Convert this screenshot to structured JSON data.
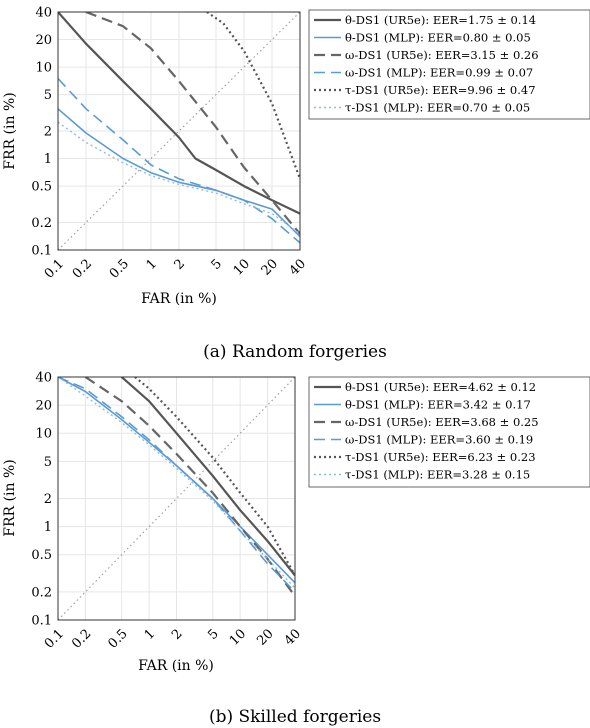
{
  "figure": {
    "panels": [
      {
        "caption": "(a) Random forgeries"
      },
      {
        "caption": "(b) Skilled forgeries"
      }
    ]
  },
  "chart_data": [
    {
      "type": "line",
      "title": "",
      "xlabel": "FAR (in %)",
      "ylabel": "FRR (in %)",
      "xscale": "log",
      "yscale": "log",
      "xlim": [
        0.1,
        40
      ],
      "ylim": [
        0.1,
        40
      ],
      "xticks": [
        "0.1",
        "0.2",
        "0.5",
        "1",
        "2",
        "5",
        "10",
        "20",
        "40"
      ],
      "yticks": [
        "0.1",
        "0.2",
        "0.5",
        "1",
        "2",
        "5",
        "10",
        "20",
        "40"
      ],
      "grid": true,
      "legend_position": "right",
      "diagonal_reference": true,
      "series": [
        {
          "name": "θ-DS1 (UR5e): EER=1.75 ± 0.14",
          "color": "#555555",
          "style": "solid",
          "width": 2.2,
          "x": [
            0.1,
            0.2,
            0.5,
            1,
            2,
            3,
            5,
            10,
            20,
            40
          ],
          "y": [
            40,
            18,
            7,
            3.5,
            1.7,
            1.0,
            0.75,
            0.5,
            0.35,
            0.25
          ]
        },
        {
          "name": "θ-DS1 (MLP): EER=0.80 ± 0.05",
          "color": "#5b9bd5",
          "style": "solid",
          "width": 1.6,
          "x": [
            0.1,
            0.2,
            0.5,
            1,
            2,
            5,
            10,
            20,
            40
          ],
          "y": [
            3.5,
            1.9,
            1.0,
            0.7,
            0.55,
            0.45,
            0.35,
            0.28,
            0.14
          ]
        },
        {
          "name": "ω-DS1 (UR5e): EER=3.15 ± 0.26",
          "color": "#666666",
          "style": "dashed",
          "width": 2.2,
          "x": [
            0.2,
            0.5,
            1,
            2,
            5,
            10,
            20,
            40
          ],
          "y": [
            40,
            28,
            16,
            7,
            2.2,
            0.8,
            0.35,
            0.15
          ]
        },
        {
          "name": "ω-DS1 (MLP): EER=0.99 ± 0.07",
          "color": "#5b9bd5",
          "style": "dashed",
          "width": 1.6,
          "x": [
            0.1,
            0.2,
            0.5,
            1,
            2,
            5,
            10,
            20,
            40
          ],
          "y": [
            7.5,
            3.5,
            1.6,
            0.85,
            0.6,
            0.45,
            0.35,
            0.22,
            0.12
          ]
        },
        {
          "name": "τ-DS1 (UR5e): EER=9.96 ± 0.47",
          "color": "#555555",
          "style": "dotted",
          "width": 2.2,
          "x": [
            4,
            6,
            10,
            20,
            40
          ],
          "y": [
            40,
            30,
            15,
            4,
            0.6
          ]
        },
        {
          "name": "τ-DS1 (MLP): EER=0.70 ± 0.05",
          "color": "#8fbbe8",
          "style": "dotted",
          "width": 1.4,
          "x": [
            0.1,
            0.2,
            0.5,
            1,
            2,
            5,
            10,
            20,
            40
          ],
          "y": [
            2.5,
            1.5,
            0.9,
            0.65,
            0.52,
            0.42,
            0.32,
            0.25,
            0.15
          ]
        }
      ]
    },
    {
      "type": "line",
      "title": "",
      "xlabel": "FAR (in %)",
      "ylabel": "FRR (in %)",
      "xscale": "log",
      "yscale": "log",
      "xlim": [
        0.1,
        40
      ],
      "ylim": [
        0.1,
        40
      ],
      "xticks": [
        "0.1",
        "0.2",
        "0.5",
        "1",
        "2",
        "5",
        "10",
        "20",
        "40"
      ],
      "yticks": [
        "0.1",
        "0.2",
        "0.5",
        "1",
        "2",
        "5",
        "10",
        "20",
        "40"
      ],
      "grid": true,
      "legend_position": "right",
      "diagonal_reference": true,
      "series": [
        {
          "name": "θ-DS1 (UR5e): EER=4.62 ± 0.12",
          "color": "#555555",
          "style": "solid",
          "width": 2.2,
          "x": [
            0.5,
            1,
            2,
            5,
            10,
            20,
            40
          ],
          "y": [
            40,
            22,
            10,
            3.5,
            1.5,
            0.7,
            0.3
          ]
        },
        {
          "name": "θ-DS1 (MLP): EER=3.42 ± 0.17",
          "color": "#5b9bd5",
          "style": "solid",
          "width": 1.6,
          "x": [
            0.1,
            0.2,
            0.5,
            1,
            2,
            5,
            10,
            20,
            40
          ],
          "y": [
            40,
            28,
            14,
            8,
            4.5,
            2.0,
            1.0,
            0.5,
            0.25
          ]
        },
        {
          "name": "ω-DS1 (UR5e): EER=3.68 ± 0.25",
          "color": "#666666",
          "style": "dashed",
          "width": 2.2,
          "x": [
            0.2,
            0.5,
            1,
            2,
            5,
            10,
            20,
            40
          ],
          "y": [
            40,
            22,
            12,
            6,
            2.3,
            1.0,
            0.45,
            0.18
          ]
        },
        {
          "name": "ω-DS1 (MLP): EER=3.60 ± 0.19",
          "color": "#5b9bd5",
          "style": "dashed",
          "width": 1.6,
          "x": [
            0.1,
            0.2,
            0.5,
            1,
            2,
            5,
            10,
            20,
            40
          ],
          "y": [
            40,
            30,
            15,
            8.5,
            4.5,
            2.0,
            0.9,
            0.4,
            0.2
          ]
        },
        {
          "name": "τ-DS1 (UR5e): EER=6.23 ± 0.23",
          "color": "#555555",
          "style": "dotted",
          "width": 2.2,
          "x": [
            0.7,
            1,
            2,
            5,
            10,
            20,
            40
          ],
          "y": [
            40,
            30,
            15,
            5.5,
            2.3,
            1.0,
            0.3
          ]
        },
        {
          "name": "τ-DS1 (MLP): EER=3.28 ± 0.15",
          "color": "#8fbbe8",
          "style": "dotted",
          "width": 1.4,
          "x": [
            0.1,
            0.2,
            0.5,
            1,
            2,
            5,
            10,
            20,
            40
          ],
          "y": [
            40,
            25,
            13,
            7.5,
            4.2,
            1.9,
            0.9,
            0.45,
            0.22
          ]
        }
      ]
    }
  ]
}
